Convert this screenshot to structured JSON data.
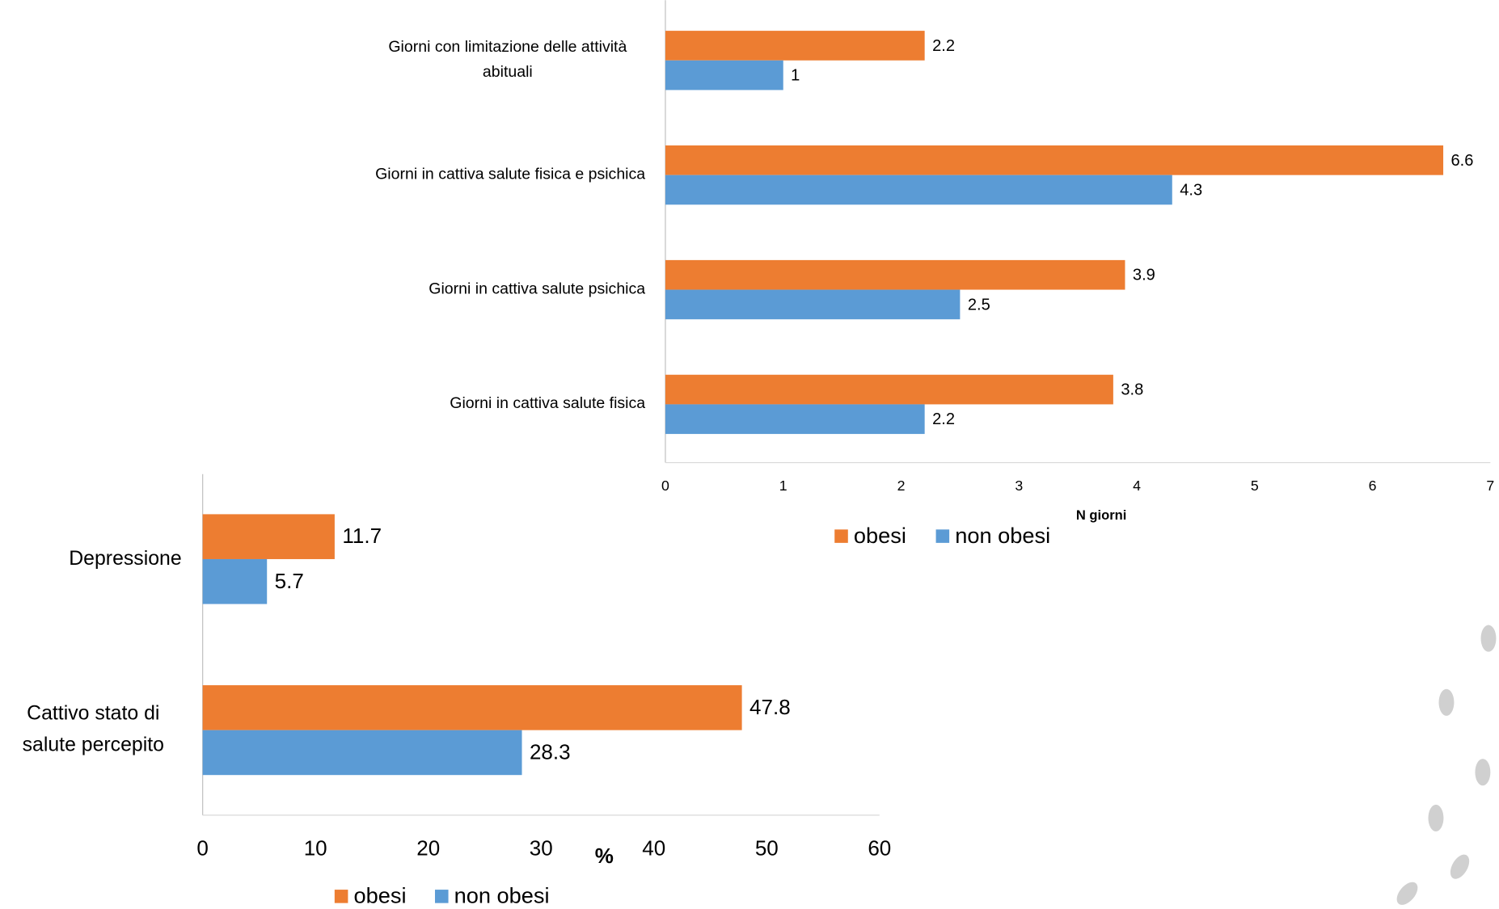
{
  "chart_data": [
    {
      "type": "hbar",
      "categories": [
        "Giorni con limitazione delle attività abituali",
        "Giorni in cattiva salute fisica e psichica",
        "Giorni in cattiva salute psichica",
        "Giorni in cattiva salute fisica"
      ],
      "series": [
        {
          "name": "obesi",
          "color": "#ed7d31",
          "values": [
            2.2,
            6.6,
            3.9,
            3.8
          ]
        },
        {
          "name": "non obesi",
          "color": "#5b9bd5",
          "values": [
            1,
            4.3,
            2.5,
            2.2
          ]
        }
      ],
      "xlim": [
        0,
        7
      ],
      "xticks": [
        0,
        1,
        2,
        3,
        4,
        5,
        6,
        7
      ],
      "x_label": "N giorni",
      "legend": "bottom"
    },
    {
      "type": "hbar",
      "categories": [
        "Depressione",
        "Cattivo stato di salute percepito"
      ],
      "series": [
        {
          "name": "obesi",
          "color": "#ed7d31",
          "values": [
            11.7,
            47.8
          ]
        },
        {
          "name": "non obesi",
          "color": "#5b9bd5",
          "values": [
            5.7,
            28.3
          ]
        }
      ],
      "xlim": [
        0,
        60
      ],
      "xticks": [
        0,
        10,
        20,
        30,
        40,
        50,
        60
      ],
      "x_label": "%",
      "legend": "bottom"
    }
  ]
}
